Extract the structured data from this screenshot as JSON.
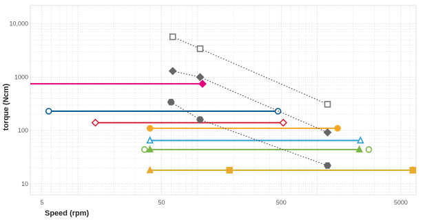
{
  "chart_data": {
    "type": "line",
    "title": "",
    "xlabel": "Speed (rpm)",
    "ylabel": "torque (Ncm)",
    "x_scale": "log",
    "y_scale": "log",
    "xlim": [
      4,
      6700
    ],
    "ylim": [
      6.2,
      22000
    ],
    "grid": true,
    "x_ticks": [
      {
        "value": 5,
        "label": "5"
      },
      {
        "value": 50,
        "label": "50"
      },
      {
        "value": 500,
        "label": "500"
      },
      {
        "value": 5000,
        "label": "5000"
      }
    ],
    "y_ticks": [
      {
        "value": 10,
        "label": "10"
      },
      {
        "value": 100,
        "label": "100"
      },
      {
        "value": 1000,
        "label": "1000"
      },
      {
        "value": 10000,
        "label": "10,000"
      }
    ],
    "series": [
      {
        "color": "#e4007c",
        "marker": "diamond",
        "fill": "filled",
        "line": "solid",
        "points": [
          {
            "x": 4,
            "y": 750
          },
          {
            "x": 110,
            "y": 750
          }
        ],
        "markers_at": [
          1
        ]
      },
      {
        "color": "#005b96",
        "marker": "circle",
        "fill": "open",
        "line": "solid",
        "points": [
          {
            "x": 5.7,
            "y": 230
          },
          {
            "x": 470,
            "y": 230
          }
        ],
        "markers_at": [
          0,
          1
        ]
      },
      {
        "color": "#d6243a",
        "marker": "diamond",
        "fill": "open",
        "line": "solid",
        "points": [
          {
            "x": 14,
            "y": 140
          },
          {
            "x": 520,
            "y": 140
          }
        ],
        "markers_at": [
          0,
          1
        ]
      },
      {
        "color": "#f5a623",
        "marker": "circle",
        "fill": "filled",
        "line": "solid",
        "points": [
          {
            "x": 40,
            "y": 110
          },
          {
            "x": 1480,
            "y": 110
          }
        ],
        "markers_at": [
          0,
          1
        ]
      },
      {
        "color": "#2a9fd8",
        "marker": "triangle",
        "fill": "open",
        "line": "solid",
        "points": [
          {
            "x": 40,
            "y": 65
          },
          {
            "x": 2300,
            "y": 65
          }
        ],
        "markers_at": [
          0,
          1
        ]
      },
      {
        "color": "#7ab648",
        "marker": "triangle",
        "fill": "filled",
        "line": "solid",
        "points": [
          {
            "x": 40,
            "y": 44
          },
          {
            "x": 2250,
            "y": 44
          }
        ],
        "markers_at": [
          1
        ]
      },
      {
        "color": "#7ab648",
        "marker": "circle",
        "fill": "open",
        "line": "none",
        "points": [
          {
            "x": 36,
            "y": 44
          },
          {
            "x": 2700,
            "y": 44
          }
        ],
        "markers_at": [
          0,
          1
        ]
      },
      {
        "color": "#7ab648",
        "marker": "triangle",
        "fill": "filled",
        "line": "none",
        "points": [
          {
            "x": 40,
            "y": 44
          }
        ],
        "markers_at": [
          0
        ]
      },
      {
        "color": "#e8a92c",
        "marker": "triangle",
        "fill": "filled",
        "line": "solid",
        "points": [
          {
            "x": 40,
            "y": 18
          },
          {
            "x": 6300,
            "y": 18
          }
        ],
        "markers_at": [
          0,
          1
        ]
      },
      {
        "color": "#e8a92c",
        "marker": "square",
        "fill": "filled",
        "line": "none",
        "points": [
          {
            "x": 185,
            "y": 18
          },
          {
            "x": 6300,
            "y": 18
          }
        ],
        "markers_at": [
          0,
          1
        ]
      },
      {
        "color": "#777777",
        "marker": "square",
        "fill": "open",
        "line": "dotted",
        "points": [
          {
            "x": 62,
            "y": 5700
          },
          {
            "x": 105,
            "y": 3400
          },
          {
            "x": 1220,
            "y": 310
          }
        ],
        "markers_at": [
          0,
          1,
          2
        ]
      },
      {
        "color": "#666666",
        "marker": "diamond",
        "fill": "filled",
        "line": "dotted",
        "points": [
          {
            "x": 62,
            "y": 1300
          },
          {
            "x": 105,
            "y": 1000
          },
          {
            "x": 1220,
            "y": 92
          }
        ],
        "markers_at": [
          0,
          1,
          2
        ]
      },
      {
        "color": "#666666",
        "marker": "hexagon",
        "fill": "filled",
        "line": "dotted",
        "points": [
          {
            "x": 60,
            "y": 340
          },
          {
            "x": 105,
            "y": 160
          },
          {
            "x": 1220,
            "y": 22
          }
        ],
        "markers_at": [
          0,
          1,
          2
        ]
      }
    ]
  }
}
